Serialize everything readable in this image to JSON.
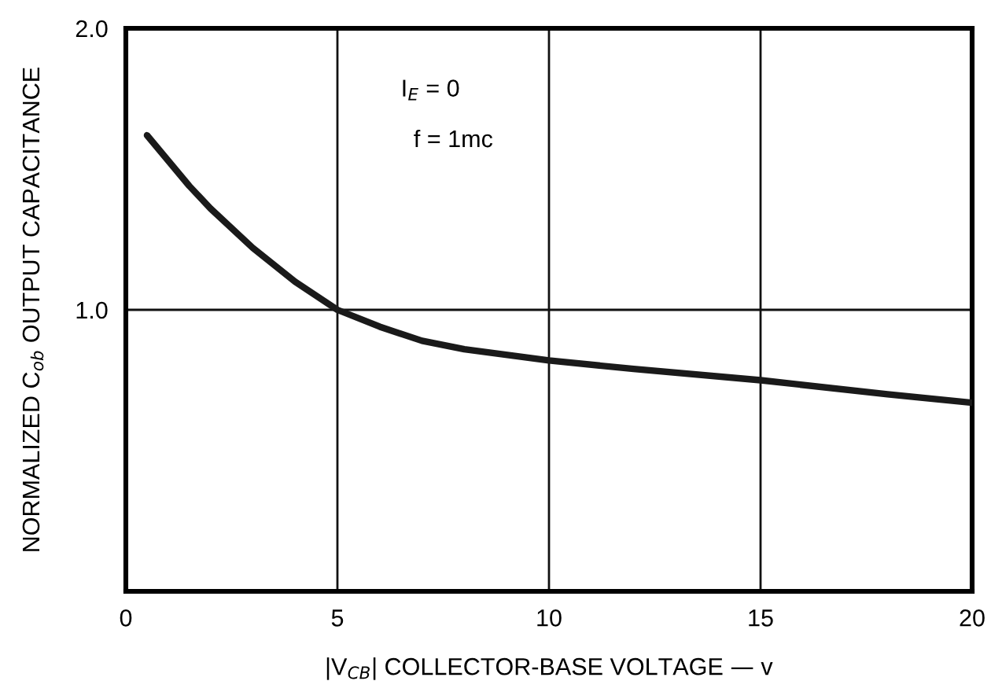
{
  "chart_data": {
    "type": "line",
    "xlabel": "|V$_{CB}$| COLLECTOR-BASE VOLTAGE — v",
    "ylabel": "NORMALIZED C$_{ob}$ OUTPUT CAPACITANCE",
    "annotations": [
      "I$_{E}$ = 0",
      "f = 1mc"
    ],
    "x": [
      0.5,
      1,
      1.5,
      2,
      3,
      4,
      5,
      6,
      7,
      8,
      10,
      12,
      15,
      18,
      20
    ],
    "series": [
      {
        "color": "#1a1a1a",
        "values": [
          1.62,
          1.53,
          1.44,
          1.36,
          1.22,
          1.1,
          1.0,
          0.94,
          0.89,
          0.86,
          0.82,
          0.79,
          0.75,
          0.7,
          0.67
        ]
      }
    ],
    "xlim": [
      0,
      20
    ],
    "xticks": [
      0,
      5,
      10,
      15,
      20
    ],
    "ylim": [
      0,
      2
    ],
    "yticks": [
      {
        "value": 1,
        "label": "1.0"
      },
      {
        "value": 2,
        "label": "2.0"
      }
    ],
    "grid": true,
    "marker": "none",
    "line_style": "solid"
  }
}
